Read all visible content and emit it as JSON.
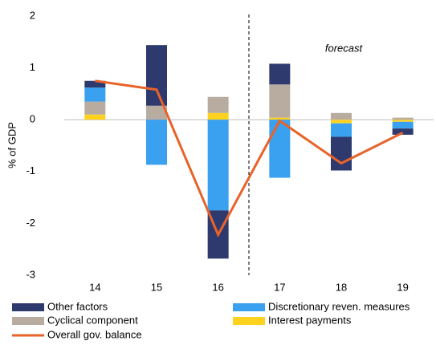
{
  "chart_data": {
    "type": "stacked-bar-line",
    "y_label": "% of GDP",
    "annotation": "forecast",
    "categories": [
      "14",
      "15",
      "16",
      "17",
      "18",
      "19"
    ],
    "series": [
      {
        "name": "Other factors",
        "color": "#2e3a6e",
        "values": [
          0.13,
          1.17,
          -0.93,
          0.4,
          -0.65,
          -0.12
        ]
      },
      {
        "name": "Discretionary reven. measures",
        "color": "#3aa0f0",
        "values": [
          0.27,
          -0.87,
          -1.75,
          -1.12,
          -0.26,
          -0.13
        ]
      },
      {
        "name": "Cyclical component",
        "color": "#b8aca0",
        "values": [
          0.25,
          0.27,
          0.31,
          0.64,
          0.13,
          0.04
        ]
      },
      {
        "name": "Interest payments",
        "color": "#ffd21f",
        "values": [
          0.1,
          0,
          0.13,
          0.04,
          -0.07,
          -0.04
        ]
      }
    ],
    "line": {
      "name": "Overall gov. balance",
      "color": "#e8632a",
      "values": [
        0.75,
        0.58,
        -2.22,
        -0.02,
        -0.84,
        -0.25
      ]
    },
    "stack_order": [
      3,
      2,
      1,
      0
    ],
    "ylim": [
      -3,
      2
    ],
    "yticks": [
      -3,
      -2,
      -1,
      0,
      1,
      2
    ]
  }
}
